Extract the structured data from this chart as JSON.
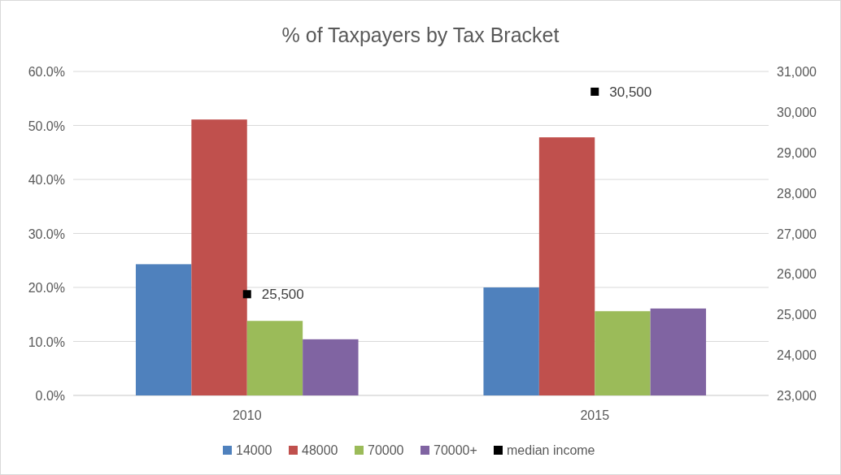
{
  "chart_data": {
    "type": "bar",
    "title": "% of Taxpayers by Tax Bracket",
    "categories": [
      "2010",
      "2015"
    ],
    "series": [
      {
        "name": "14000",
        "color": "#4f81bd",
        "values": [
          24.3,
          20.0
        ]
      },
      {
        "name": "48000",
        "color": "#c0504d",
        "values": [
          51.1,
          47.8
        ]
      },
      {
        "name": "70000",
        "color": "#9bbb59",
        "values": [
          13.8,
          15.6
        ]
      },
      {
        "name": "70000+",
        "color": "#8064a2",
        "values": [
          10.4,
          16.1
        ]
      },
      {
        "name": "median income",
        "type": "scatter",
        "axis": "y2",
        "color": "#000000",
        "marker": "square",
        "values": [
          25500,
          30500
        ],
        "value_labels": [
          "25,500",
          "30,500"
        ]
      }
    ],
    "ylim": [
      0,
      60
    ],
    "yticks": [
      {
        "value": 0,
        "label": "0.0%"
      },
      {
        "value": 10,
        "label": "10.0%"
      },
      {
        "value": 20,
        "label": "20.0%"
      },
      {
        "value": 30,
        "label": "30.0%"
      },
      {
        "value": 40,
        "label": "40.0%"
      },
      {
        "value": 50,
        "label": "50.0%"
      },
      {
        "value": 60,
        "label": "60.0%"
      }
    ],
    "y2lim": [
      23000,
      31000
    ],
    "y2ticks": [
      {
        "value": 23000,
        "label": "23,000"
      },
      {
        "value": 24000,
        "label": "24,000"
      },
      {
        "value": 25000,
        "label": "25,000"
      },
      {
        "value": 26000,
        "label": "26,000"
      },
      {
        "value": 27000,
        "label": "27,000"
      },
      {
        "value": 28000,
        "label": "28,000"
      },
      {
        "value": 29000,
        "label": "29,000"
      },
      {
        "value": 30000,
        "label": "30,000"
      },
      {
        "value": 31000,
        "label": "31,000"
      }
    ],
    "grid": "y",
    "legend": "bottom"
  }
}
